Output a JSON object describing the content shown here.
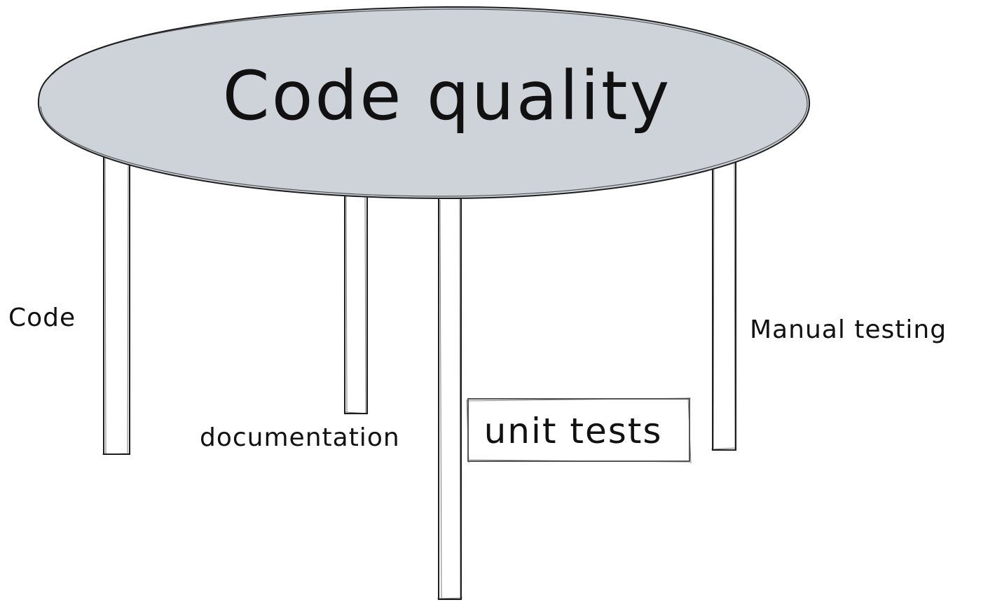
{
  "colors": {
    "table_top": "#ced3d9",
    "ink": "#1e1e1e"
  },
  "table_top": {
    "title": "Code quality"
  },
  "legs": [
    {
      "label": "Code"
    },
    {
      "label": "documentation"
    },
    {
      "label": "unit tests",
      "highlighted": true
    },
    {
      "label": "Manual testing"
    }
  ]
}
